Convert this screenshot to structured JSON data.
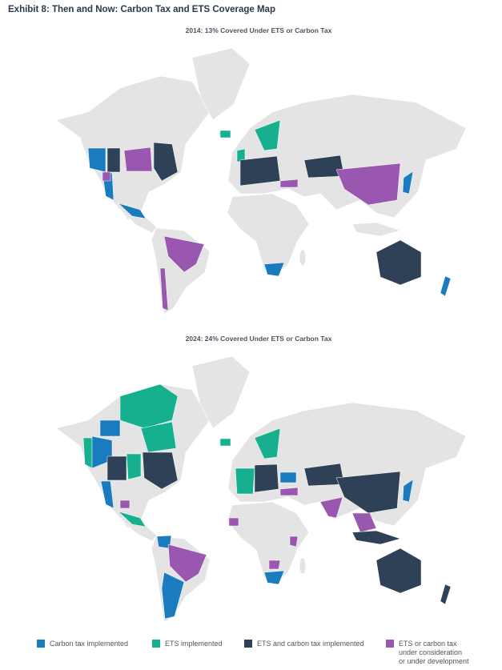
{
  "title": "Exhibit 8: Then and Now: Carbon Tax and ETS Coverage Map",
  "maps": [
    {
      "subtitle": "2014: 13% Covered Under ETS or Carbon Tax"
    },
    {
      "subtitle": "2024: 24% Covered Under ETS or Carbon Tax"
    }
  ],
  "legend": [
    {
      "label": [
        "Carbon tax implemented"
      ],
      "color": "#1a7bbf"
    },
    {
      "label": [
        "ETS implemented"
      ],
      "color": "#17b08e"
    },
    {
      "label": [
        "ETS and carbon tax implemented"
      ],
      "color": "#2e4157"
    },
    {
      "label": [
        "ETS or carbon tax",
        "under consideration",
        "or under development"
      ],
      "color": "#9a57b0"
    }
  ]
}
